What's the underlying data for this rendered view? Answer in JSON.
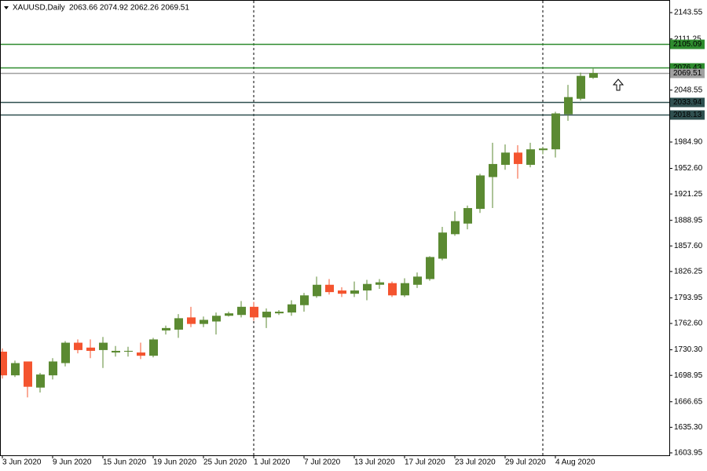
{
  "chart_data": {
    "type": "candlestick",
    "title": "XAUUSD,Daily",
    "subtitle": "2063.66 2074.92 2062.26 2069.51",
    "categories": [
      "3 Jun 2020",
      null,
      null,
      null,
      "9 Jun 2020",
      null,
      null,
      null,
      "15 Jun 2020",
      null,
      null,
      null,
      "19 Jun 2020",
      null,
      null,
      null,
      "25 Jun 2020",
      null,
      null,
      null,
      "1 Jul 2020",
      null,
      null,
      null,
      "7 Jul 2020",
      null,
      null,
      null,
      "13 Jul 2020",
      null,
      null,
      null,
      "17 Jul 2020",
      null,
      null,
      null,
      "23 Jul 2020",
      null,
      null,
      null,
      "29 Jul 2020",
      null,
      null,
      null,
      "4 Aug 2020",
      null,
      null,
      null
    ],
    "open": [
      1728,
      1699,
      1716,
      1684,
      1699,
      1714,
      1739,
      1733,
      1730,
      1727,
      1728,
      1727,
      1723,
      1754,
      1755,
      1770,
      1762,
      1765,
      1772,
      1773,
      1783,
      1770,
      1775,
      1776,
      1785,
      1796,
      1810,
      1803,
      1799,
      1803,
      1810,
      1812,
      1797,
      1810,
      1817,
      1842,
      1872,
      1885,
      1903,
      1942,
      1957,
      1972,
      1957,
      1975,
      1976,
      2019,
      2038,
      2063.66
    ],
    "high": [
      1732,
      1717,
      1716,
      1702,
      1720,
      1741,
      1743,
      1743,
      1746,
      1735,
      1734,
      1739,
      1745,
      1760,
      1774,
      1783,
      1771,
      1776,
      1777,
      1790,
      1789,
      1781,
      1779,
      1791,
      1800,
      1820,
      1817,
      1807,
      1814,
      1816,
      1817,
      1814,
      1818,
      1825,
      1845,
      1881,
      1900,
      1907,
      1946,
      1984,
      1982,
      1981,
      1984,
      1979,
      2022,
      2055,
      2070,
      2074.92
    ],
    "low": [
      1695,
      1697,
      1672,
      1678,
      1694,
      1710,
      1726,
      1720,
      1708,
      1722,
      1722,
      1719,
      1721,
      1749,
      1745,
      1758,
      1758,
      1749,
      1771,
      1770,
      1766,
      1757,
      1773,
      1772,
      1777,
      1794,
      1798,
      1795,
      1795,
      1791,
      1805,
      1795,
      1795,
      1806,
      1815,
      1840,
      1870,
      1878,
      1898,
      1904,
      1951,
      1940,
      1954,
      1970,
      1966,
      2011,
      2036,
      2062.26
    ],
    "close": [
      1699,
      1714,
      1685,
      1700,
      1716,
      1739,
      1730,
      1729,
      1739,
      1729,
      1729,
      1723,
      1743,
      1757,
      1769,
      1762,
      1767,
      1772,
      1775,
      1783,
      1770,
      1777,
      1777,
      1786,
      1797,
      1810,
      1801,
      1799,
      1803,
      1811,
      1813,
      1797,
      1812,
      1820,
      1844,
      1874,
      1888,
      1904,
      1944,
      1958,
      1972,
      1958,
      1976,
      1977,
      2020,
      2040,
      2066,
      2069.51
    ],
    "up_color": "#5b8a32",
    "down_color": "#f4542f",
    "ylim": [
      1601,
      2159
    ],
    "yticks": [
      1603.95,
      {
        "value": 1635.3,
        "label": "1635.30"
      },
      1666.65,
      1698.95,
      {
        "value": 1730.3,
        "label": "1730.30"
      },
      {
        "value": 1762.6,
        "label": "1762.60"
      },
      1793.95,
      1826.25,
      {
        "value": 1857.6,
        "label": "1857.60"
      },
      1888.95,
      1921.25,
      {
        "value": 1952.6,
        "label": "1952.60"
      },
      {
        "value": 1984.9,
        "label": "1984.90"
      },
      2048.55,
      2111.25,
      2143.55
    ],
    "levels": [
      {
        "value": 2105.09,
        "color": "#2e8b2e"
      },
      {
        "value": 2076.43,
        "color": "#2e8b2e"
      },
      {
        "value": 2069.51,
        "color": "#a0a0a0"
      },
      {
        "value": 2033.94,
        "color": "#2f4f4f"
      },
      {
        "value": 2018.13,
        "color": "#2f4f4f"
      }
    ]
  }
}
